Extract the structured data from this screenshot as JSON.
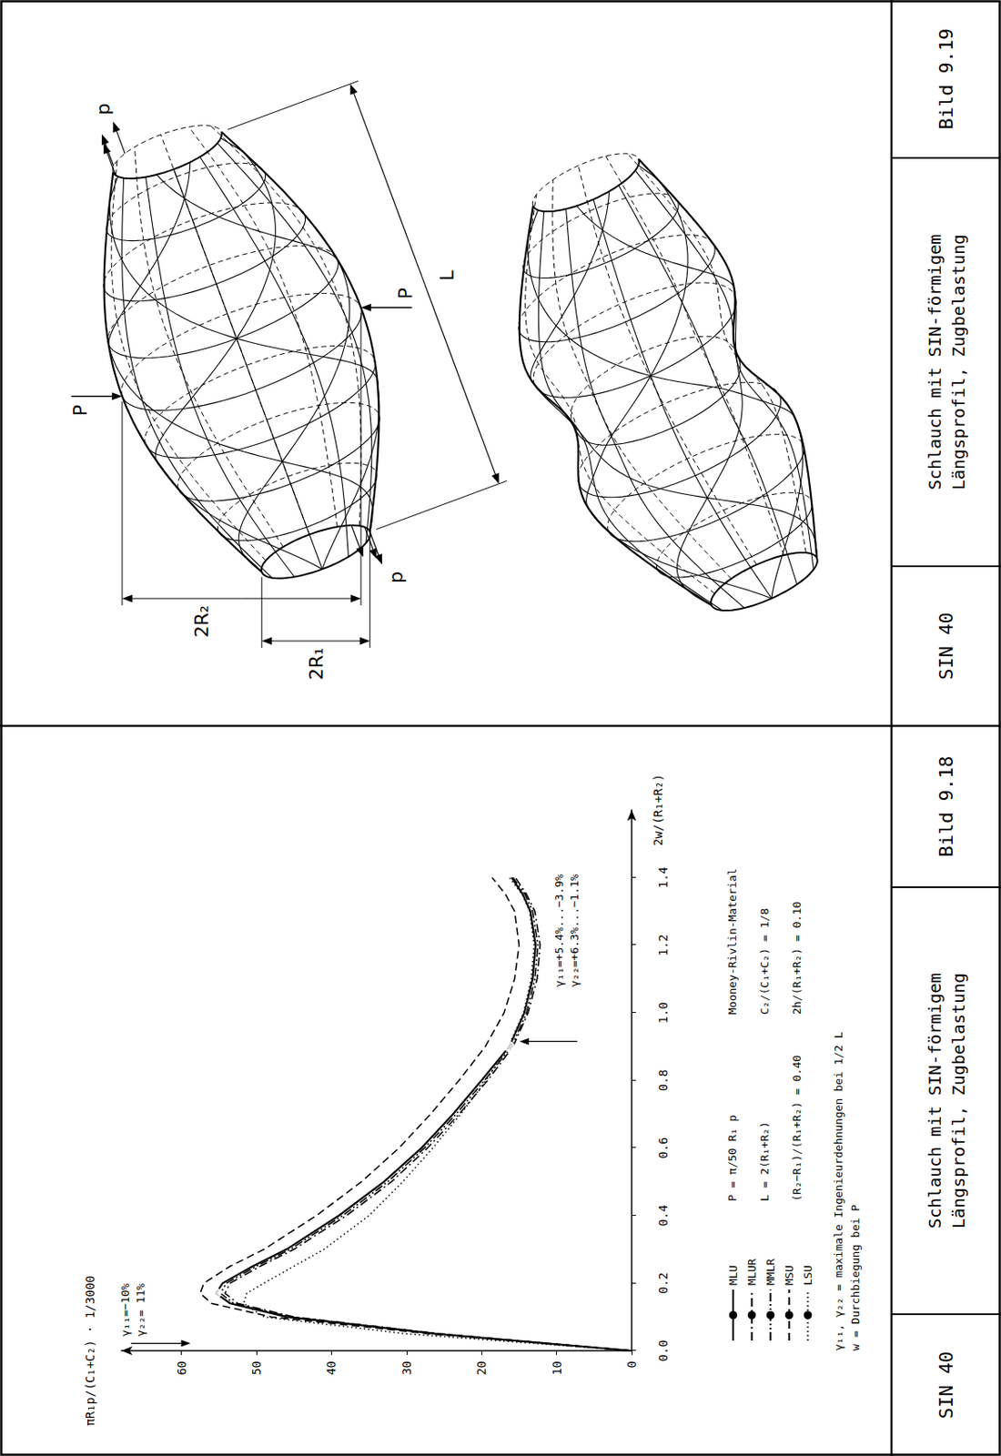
{
  "chart_data": {
    "type": "line",
    "x_label": "2w/(R₁+R₂)",
    "y_label": "πR₁p/(C₁+C₂) · 1/3000",
    "xlim": [
      0,
      1.6
    ],
    "xticks": [
      {
        "value": 0,
        "label": "0.0"
      },
      0.2,
      0.4,
      0.6,
      0.8,
      {
        "value": 1,
        "label": "1.0"
      },
      1.2,
      1.4
    ],
    "ylim": [
      0,
      68
    ],
    "yticks": [
      0,
      10,
      20,
      30,
      40,
      50,
      60
    ],
    "grid": false,
    "legend": "lower left",
    "x": [
      0,
      0.05,
      0.1,
      0.14,
      0.17,
      0.2,
      0.25,
      0.3,
      0.4,
      0.5,
      0.6,
      0.7,
      0.8,
      0.9,
      1.0,
      1.1,
      1.2,
      1.3,
      1.35,
      1.4
    ],
    "series": [
      {
        "name": "MLU",
        "color": "#000000",
        "line_style": "solid",
        "values": [
          0,
          26,
          46,
          53.5,
          55.4,
          54.5,
          50.5,
          46,
          39,
          33,
          28,
          23.8,
          20,
          16.3,
          14.3,
          13.2,
          12.8,
          13.5,
          14.5,
          16
        ]
      },
      {
        "name": "MLUR",
        "color": "#000000",
        "line_style": "dashdot",
        "values": [
          0,
          25.5,
          45,
          52.5,
          54.2,
          53.5,
          49.5,
          45,
          38,
          32,
          27.2,
          23,
          19.2,
          15.8,
          13.8,
          12.6,
          12.2,
          12.9,
          14,
          15.5
        ]
      },
      {
        "name": "MMLR",
        "color": "#000000",
        "line_style": "dashdotdot",
        "values": [
          0,
          25.8,
          45.5,
          53,
          54.8,
          54,
          50,
          45.5,
          38.5,
          32.5,
          27.6,
          23.4,
          19.6,
          16,
          14,
          12.9,
          12.5,
          13.2,
          14.2,
          15.8
        ]
      },
      {
        "name": "MSU",
        "color": "#000000",
        "line_style": "dashed",
        "values": [
          0,
          27,
          48,
          56,
          57.5,
          57,
          53.5,
          49,
          42,
          36,
          31,
          26.8,
          23,
          19.5,
          17,
          15.6,
          15,
          15.6,
          16.8,
          18.6
        ]
      },
      {
        "name": "LSU",
        "color": "#000000",
        "line_style": "dotted",
        "values": [
          0,
          30,
          49,
          51.7,
          51.3,
          49,
          45,
          41,
          35,
          30.5,
          26.5,
          22.8,
          19.4,
          16.4,
          14.4,
          13.4,
          13,
          13.6,
          14.6,
          16.3
        ]
      }
    ],
    "annotations": [
      {
        "x": 0.17,
        "y": 55.4,
        "marker": "circle",
        "text": [
          "γ₁₁=−10%",
          "γ₂₂= 11%"
        ]
      },
      {
        "x": 0.9,
        "y": 16.3,
        "marker": "circle",
        "text": [
          "γ₁₁=+5.4%...−3.9%",
          "γ₂₂=+6.3%...−1.1%"
        ]
      }
    ],
    "parameters": [
      "P = π/50 R₁ p",
      "L = 2(R₁+R₂)",
      "(R₂−R₁)/(R₁+R₂) = 0.40",
      "Mooney-Rivlin-Material",
      "C₂/(C₁+C₂) = 1/8",
      "2h/(R₁+R₂) = 0.10"
    ],
    "notes": [
      "γ₁₁, γ₂₂ = maximale Ingenieurdehnungen bei 1/2 L",
      "w = Durchbiegung bei P"
    ]
  },
  "figure_9_19": {
    "labels": {
      "point_load": "P",
      "tension": "p",
      "length": "L",
      "diameter_mid": "2R₂",
      "diameter_end": "2R₁"
    }
  },
  "captions": [
    {
      "code": "SIN 40",
      "title_lines": [
        "Schlauch mit SIN-förmigem",
        "Längsprofil, Zugbelastung"
      ],
      "figure": "Bild 9.18"
    },
    {
      "code": "SIN 40",
      "title_lines": [
        "Schlauch mit SIN-förmigem",
        "Längsprofil, Zugbelastung"
      ],
      "figure": "Bild 9.19"
    }
  ]
}
